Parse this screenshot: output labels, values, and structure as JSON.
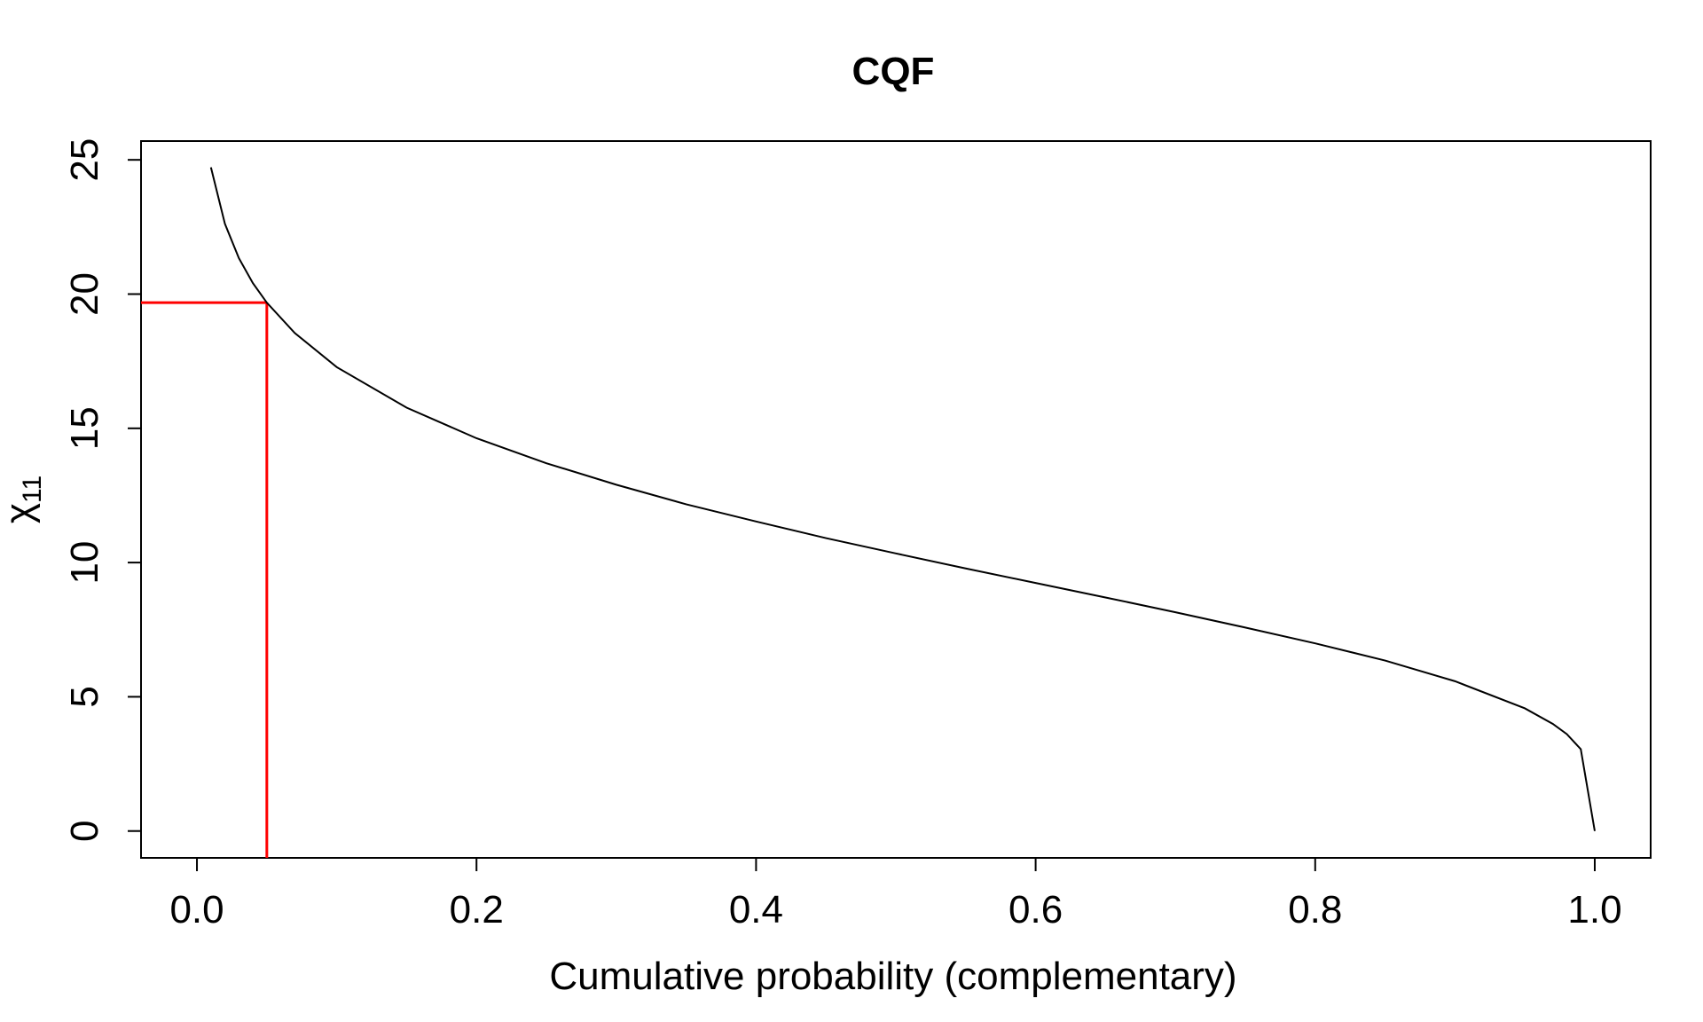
{
  "chart_data": {
    "type": "line",
    "title": "CQF",
    "xlabel": "Cumulative probability (complementary)",
    "ylabel": {
      "symbol": "χ",
      "subscript": "11"
    },
    "xlim": [
      -0.04,
      1.04
    ],
    "ylim": [
      -1,
      25.7
    ],
    "xticks": [
      0.0,
      0.2,
      0.4,
      0.6,
      0.8,
      1.0
    ],
    "xtick_labels": [
      "0.0",
      "0.2",
      "0.4",
      "0.6",
      "0.8",
      "1.0"
    ],
    "yticks": [
      0,
      5,
      10,
      15,
      20,
      25
    ],
    "ytick_labels": [
      "0",
      "5",
      "10",
      "15",
      "20",
      "25"
    ],
    "grid": false,
    "series": [
      {
        "color": "#000000",
        "x": [
          0.01,
          0.02,
          0.03,
          0.04,
          0.05,
          0.07,
          0.1,
          0.15,
          0.2,
          0.25,
          0.3,
          0.35,
          0.4,
          0.45,
          0.5,
          0.55,
          0.6,
          0.65,
          0.7,
          0.75,
          0.8,
          0.85,
          0.9,
          0.95,
          0.97,
          0.98,
          0.99,
          1.0
        ],
        "y": [
          24.72,
          22.62,
          21.34,
          20.41,
          19.68,
          18.55,
          17.28,
          15.77,
          14.63,
          13.7,
          12.9,
          12.17,
          11.53,
          10.91,
          10.34,
          9.78,
          9.24,
          8.7,
          8.15,
          7.58,
          6.99,
          6.35,
          5.58,
          4.57,
          3.99,
          3.61,
          3.05,
          0.0
        ]
      }
    ],
    "annotation": {
      "color": "#ff0000",
      "x": 0.05,
      "y": 19.68
    }
  }
}
